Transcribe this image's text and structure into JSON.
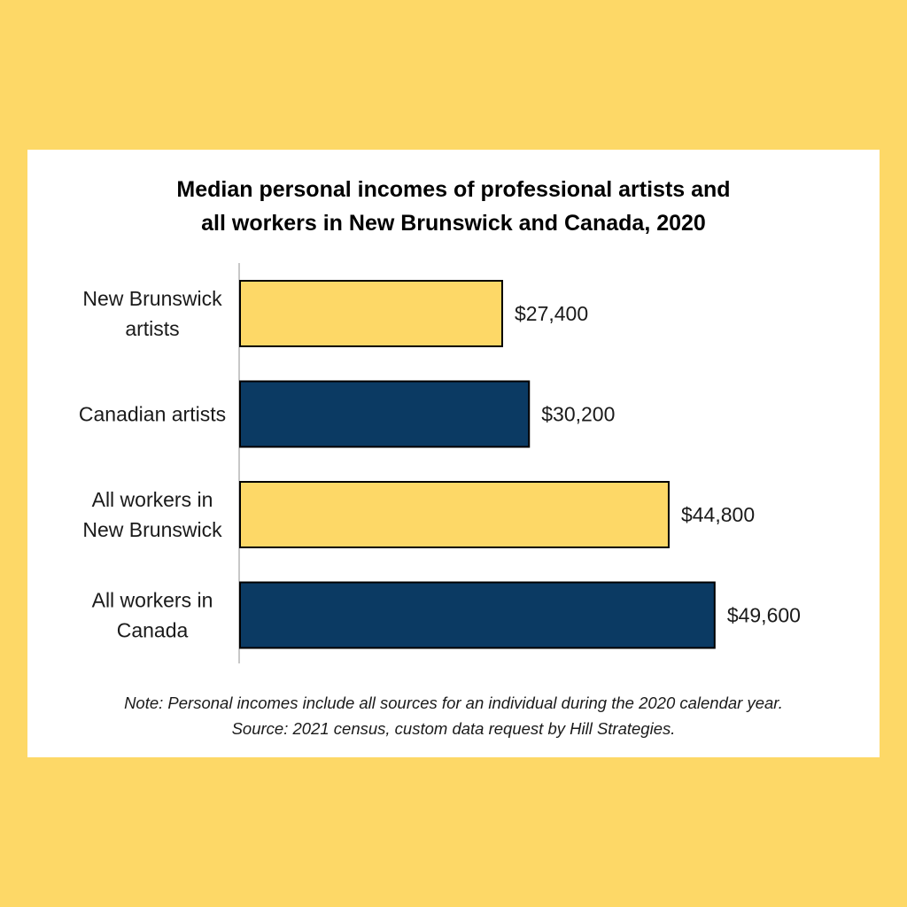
{
  "colors": {
    "page_background": "#fdd867",
    "card_background": "#ffffff",
    "bar_yellow": "#fdd867",
    "bar_navy": "#0b3a63",
    "bar_outline": "#000000"
  },
  "chart_data": {
    "type": "bar",
    "orientation": "horizontal",
    "title_lines": [
      "Median personal incomes of professional artists and",
      "all workers in New Brunswick and Canada, 2020"
    ],
    "categories": [
      [
        "New Brunswick",
        "artists"
      ],
      [
        "Canadian artists"
      ],
      [
        "All workers in",
        "New Brunswick"
      ],
      [
        "All workers in",
        "Canada"
      ]
    ],
    "values": [
      27400,
      30200,
      44800,
      49600
    ],
    "value_labels": [
      "$27,400",
      "$30,200",
      "$44,800",
      "$49,600"
    ],
    "bar_colors": [
      "#fdd867",
      "#0b3a63",
      "#fdd867",
      "#0b3a63"
    ],
    "xlim": [
      0,
      55000
    ],
    "grid": false,
    "legend": "none"
  },
  "notes": {
    "note": "Note: Personal incomes include all sources for an individual during the 2020 calendar year.",
    "source": "Source: 2021 census, custom data request by Hill Strategies."
  }
}
